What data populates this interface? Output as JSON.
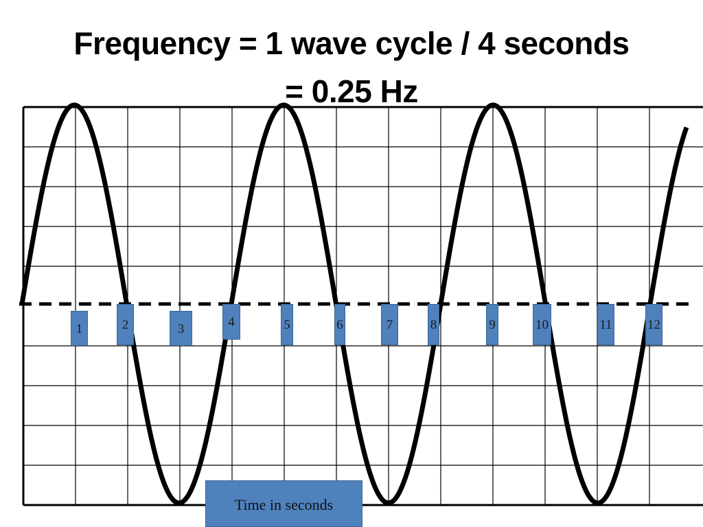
{
  "title": {
    "line1": "Frequency = 1 wave cycle / 4 seconds",
    "line2": "= 0.25 Hz"
  },
  "time_markers": [
    "1",
    "2",
    "3",
    "4",
    "5",
    "6",
    "7",
    "8",
    "9",
    "10",
    "11",
    "12"
  ],
  "axis_label": "Time in seconds",
  "colors": {
    "marker_fill": "#4f81bd",
    "wave": "#000000",
    "grid": "#000000"
  }
}
